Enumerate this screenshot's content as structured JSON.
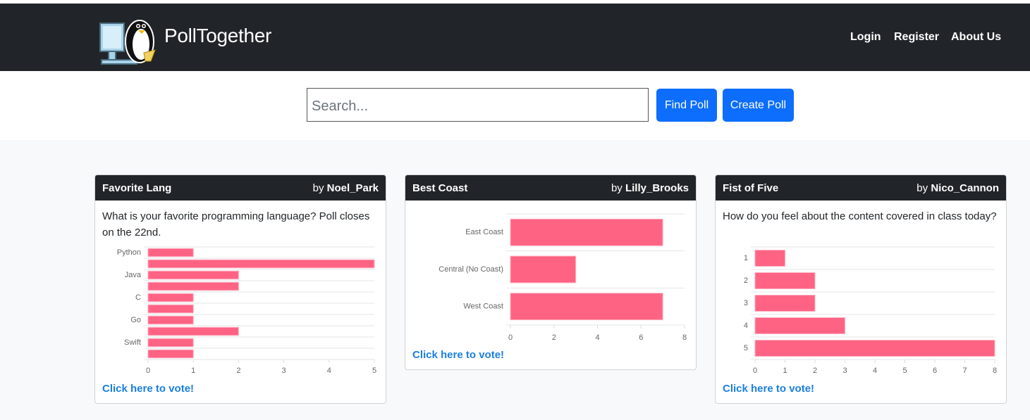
{
  "header": {
    "brand": "PollTogether",
    "nav": [
      "Login",
      "Register",
      "About Us"
    ]
  },
  "search": {
    "placeholder": "Search...",
    "buttons": [
      "Find Poll",
      "Create Poll"
    ]
  },
  "polls": [
    {
      "title": "Favorite Lang",
      "by": "by",
      "author": "Noel_Park",
      "description": "What is your favorite programming language? Poll closes on the 22nd.",
      "vote_link": "Click here to vote!",
      "chart_data": {
        "type": "bar",
        "orientation": "horizontal",
        "categories": [
          "Python",
          null,
          "Java",
          null,
          "C",
          null,
          "Go",
          null,
          "Swift",
          null
        ],
        "values": [
          1,
          5,
          2,
          2,
          1,
          1,
          1,
          2,
          1,
          1
        ],
        "color": "#ff6384",
        "xlim": [
          0,
          5
        ],
        "xticks": [
          0,
          1,
          2,
          3,
          4,
          5
        ],
        "grid": true
      }
    },
    {
      "title": "Best Coast",
      "by": "by",
      "author": "Lilly_Brooks",
      "vote_link": "Click here to vote!",
      "chart_data": {
        "type": "bar",
        "orientation": "horizontal",
        "categories": [
          "East Coast",
          "Central (No Coast)",
          "West Coast"
        ],
        "values": [
          7,
          3,
          7
        ],
        "color": "#ff6384",
        "xlim": [
          0,
          8
        ],
        "xticks": [
          0,
          2,
          4,
          6,
          8
        ],
        "grid": true
      }
    },
    {
      "title": "Fist of Five",
      "by": "by",
      "author": "Nico_Cannon",
      "description": "How do you feel about the content covered in class today?",
      "vote_link": "Click here to vote!",
      "chart_data": {
        "type": "bar",
        "orientation": "horizontal",
        "categories": [
          "1",
          "2",
          "3",
          "4",
          "5"
        ],
        "values": [
          1,
          2,
          2,
          3,
          8
        ],
        "color": "#ff6384",
        "xlim": [
          0,
          8
        ],
        "xticks": [
          0,
          1,
          2,
          3,
          4,
          5,
          6,
          7,
          8
        ],
        "grid": true
      }
    }
  ]
}
